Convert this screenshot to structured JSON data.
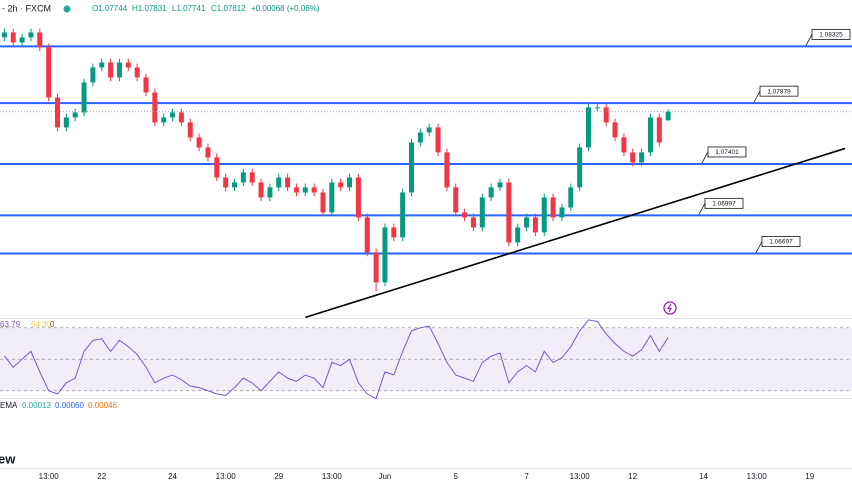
{
  "header": {
    "symbol": "- 2h · FXCM",
    "open": "O1.07744",
    "high": "H1.07831",
    "low": "L1.07741",
    "close": "C1.07812",
    "change": "+0.00068 (+0.06%)"
  },
  "rsi_legend": [
    "63.79",
    "54.30",
    "0"
  ],
  "macd_legend": {
    "name": "EMA",
    "values": [
      "0.00013",
      "0.00060",
      "0.00046"
    ]
  },
  "logo": "ew",
  "chart_data": {
    "type": "candlestick",
    "categories": [
      null,
      null,
      null,
      null,
      null,
      "13:00",
      null,
      null,
      null,
      null,
      null,
      "22",
      null,
      null,
      null,
      null,
      null,
      null,
      null,
      "24",
      null,
      null,
      null,
      null,
      null,
      "13:00",
      null,
      null,
      null,
      null,
      null,
      "29",
      null,
      null,
      null,
      null,
      null,
      "13:00",
      null,
      null,
      null,
      null,
      null,
      "Jun",
      null,
      null,
      null,
      null,
      null,
      null,
      null,
      "5",
      null,
      null,
      null,
      null,
      null,
      null,
      null,
      "7",
      null,
      null,
      null,
      null,
      null,
      "13:00",
      null,
      null,
      null,
      null,
      null,
      "12",
      null,
      null,
      null,
      null,
      null,
      null,
      null,
      "14",
      null,
      null,
      null,
      null,
      null,
      "13:00",
      null,
      null,
      null,
      null,
      null,
      "19",
      null,
      null,
      null,
      null
    ],
    "open": [
      1.08396,
      1.08435,
      1.08356,
      1.08396,
      1.08435,
      1.08317,
      1.07924,
      1.07688,
      1.07767,
      1.07806,
      1.08042,
      1.0816,
      1.08199,
      1.08081,
      1.08199,
      1.0816,
      1.08081,
      1.07963,
      1.07728,
      1.07767,
      1.07806,
      1.07728,
      1.0761,
      1.07531,
      1.07453,
      1.07295,
      1.07217,
      1.07256,
      1.07335,
      1.07256,
      1.07138,
      1.07217,
      1.07295,
      1.07217,
      1.07177,
      1.07217,
      1.07177,
      1.0702,
      1.07256,
      1.07217,
      1.07295,
      1.06981,
      1.06706,
      1.0647,
      1.06902,
      1.06824,
      1.07177,
      1.0757,
      1.07649,
      1.07688,
      1.07492,
      1.07217,
      1.0702,
      1.06981,
      1.06902,
      1.07138,
      1.07217,
      1.07256,
      1.06784,
      1.06902,
      1.06981,
      1.06863,
      1.07138,
      1.06981,
      1.07059,
      1.07217,
      1.07531,
      1.07846,
      1.07846,
      1.07728,
      1.0761,
      1.07492,
      1.07413,
      1.07492,
      1.07767,
      1.07744,
      null,
      null,
      null,
      null,
      null,
      null,
      null,
      null,
      null,
      null,
      null,
      null,
      null,
      null,
      null,
      null,
      null,
      null,
      null,
      null
    ],
    "high": [
      1.08465,
      1.08465,
      1.08426,
      1.08465,
      1.08465,
      1.08347,
      1.07954,
      1.07797,
      1.07836,
      1.08072,
      1.0819,
      1.08229,
      1.08229,
      1.08229,
      1.08229,
      1.0819,
      1.08111,
      1.07993,
      1.07797,
      1.07836,
      1.07836,
      1.07758,
      1.0764,
      1.07561,
      1.07483,
      1.07325,
      1.07286,
      1.07365,
      1.07365,
      1.07286,
      1.07247,
      1.07325,
      1.07325,
      1.07247,
      1.07247,
      1.07247,
      1.07207,
      1.07286,
      1.07286,
      1.07325,
      1.07325,
      1.07011,
      1.06736,
      1.06932,
      1.06932,
      1.07207,
      1.076,
      1.07679,
      1.07718,
      1.07718,
      1.07522,
      1.07247,
      1.0705,
      1.07011,
      1.07168,
      1.07247,
      1.07286,
      1.07286,
      1.06932,
      1.07011,
      1.07011,
      1.07168,
      1.07168,
      1.07089,
      1.07247,
      1.07561,
      1.07876,
      1.07876,
      1.07876,
      1.07758,
      1.0764,
      1.07522,
      1.07522,
      1.07797,
      1.07797,
      1.07831,
      null,
      null,
      null,
      null,
      null,
      null,
      null,
      null,
      null,
      null,
      null,
      null,
      null,
      null,
      null,
      null,
      null,
      null,
      null,
      null
    ],
    "low": [
      1.08366,
      1.08326,
      1.08326,
      1.08366,
      1.08287,
      1.07894,
      1.07658,
      1.07658,
      1.07737,
      1.07776,
      1.08012,
      1.0813,
      1.08051,
      1.08051,
      1.0813,
      1.08051,
      1.07933,
      1.07698,
      1.07698,
      1.07737,
      1.07698,
      1.0758,
      1.07501,
      1.07423,
      1.07265,
      1.07187,
      1.07187,
      1.07226,
      1.07226,
      1.07108,
      1.07108,
      1.07187,
      1.07187,
      1.07147,
      1.07147,
      1.07147,
      1.0699,
      1.0699,
      1.07187,
      1.07187,
      1.06951,
      1.06676,
      1.064,
      1.0644,
      1.06794,
      1.06794,
      1.07147,
      1.0754,
      1.07619,
      1.07462,
      1.07187,
      1.0699,
      1.06951,
      1.06872,
      1.06872,
      1.07108,
      1.07187,
      1.06754,
      1.06754,
      1.06872,
      1.06833,
      1.06833,
      1.06951,
      1.06951,
      1.07029,
      1.07187,
      1.07501,
      1.07816,
      1.07698,
      1.0758,
      1.07462,
      1.07383,
      1.07383,
      1.07462,
      1.0754,
      1.07741,
      null,
      null,
      null,
      null,
      null,
      null,
      null,
      null,
      null,
      null,
      null,
      null,
      null,
      null,
      null,
      null,
      null,
      null,
      null,
      null
    ],
    "close": [
      1.08435,
      1.08356,
      1.08396,
      1.08435,
      1.08317,
      1.07924,
      1.07688,
      1.07767,
      1.07806,
      1.08042,
      1.0816,
      1.08199,
      1.08081,
      1.08199,
      1.0816,
      1.08081,
      1.07963,
      1.07728,
      1.07767,
      1.07806,
      1.07728,
      1.0761,
      1.07531,
      1.07453,
      1.07295,
      1.07217,
      1.07256,
      1.07335,
      1.07256,
      1.07138,
      1.07217,
      1.07295,
      1.07217,
      1.07177,
      1.07217,
      1.07177,
      1.0702,
      1.07256,
      1.07217,
      1.07295,
      1.06981,
      1.06706,
      1.0647,
      1.06902,
      1.06824,
      1.07177,
      1.0757,
      1.07649,
      1.07688,
      1.07492,
      1.07217,
      1.0702,
      1.06981,
      1.06902,
      1.07138,
      1.07217,
      1.07256,
      1.06784,
      1.06902,
      1.06981,
      1.06863,
      1.07138,
      1.06981,
      1.07059,
      1.07217,
      1.07531,
      1.07846,
      1.07846,
      1.07728,
      1.0761,
      1.07492,
      1.07413,
      1.07492,
      1.07767,
      1.0757,
      1.07812,
      null,
      null,
      null,
      null,
      null,
      null,
      null,
      null,
      null,
      null,
      null,
      null,
      null,
      null,
      null,
      null,
      null,
      null,
      null,
      null
    ],
    "up_color": "#089981",
    "down_color": "#f23645",
    "ylim": [
      1.0619,
      1.0869
    ],
    "levels": [
      1.08325,
      1.07879,
      1.07401,
      1.06997,
      1.06697
    ],
    "level_color": "#2962ff",
    "trendline": {
      "x": [
        34,
        95
      ],
      "y": [
        1.06195,
        1.07523
      ]
    },
    "rsi": {
      "color": "#7e57c2",
      "ylim": [
        25.4,
        76.2
      ],
      "bands": [
        70,
        50,
        30
      ],
      "values": [
        52,
        45,
        50,
        55,
        42,
        30,
        28,
        35,
        38,
        55,
        62,
        63,
        55,
        62,
        58,
        53,
        45,
        35,
        38,
        40,
        37,
        33,
        32,
        30,
        28,
        27,
        32,
        38,
        35,
        30,
        36,
        42,
        38,
        36,
        40,
        38,
        32,
        48,
        46,
        50,
        35,
        28,
        25,
        42,
        40,
        55,
        68,
        70,
        71,
        60,
        48,
        40,
        38,
        36,
        48,
        52,
        54,
        35,
        42,
        46,
        42,
        55,
        48,
        51,
        58,
        68,
        75,
        74,
        66,
        60,
        55,
        52,
        56,
        65,
        55,
        63.79,
        null,
        null,
        null,
        null,
        null,
        null,
        null,
        null,
        null,
        null,
        null,
        null,
        null,
        null,
        null,
        null,
        null,
        null,
        null,
        null
      ]
    }
  }
}
